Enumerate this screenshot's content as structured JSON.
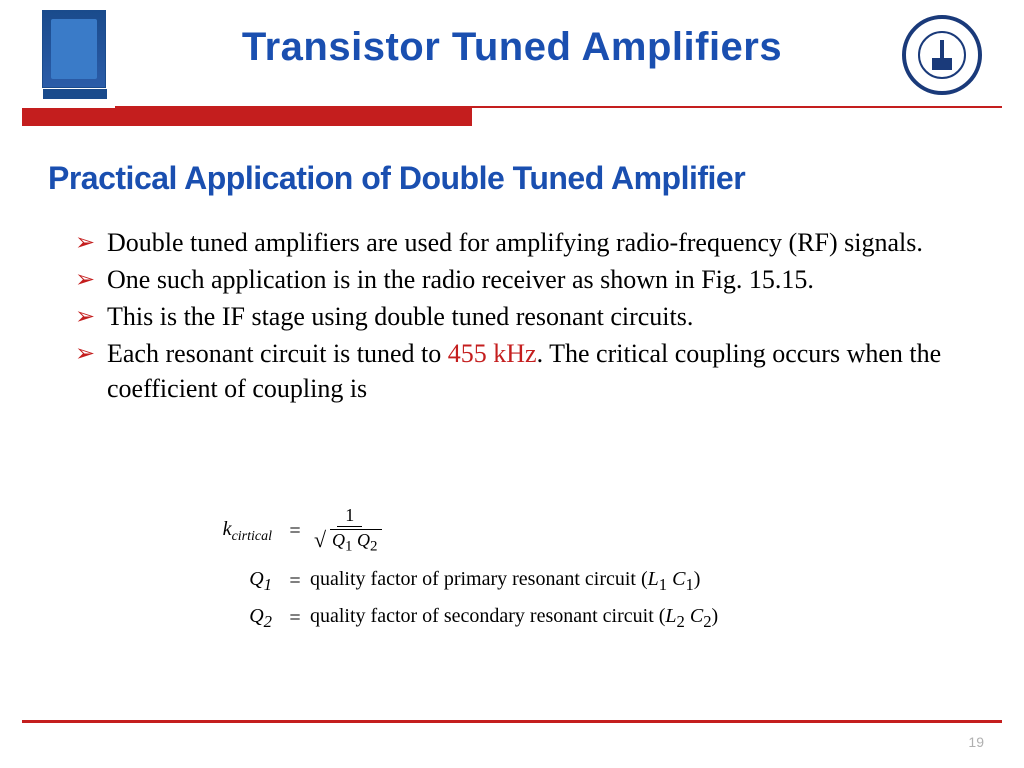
{
  "header": {
    "title": "Transistor Tuned Amplifiers",
    "title_color": "#1a4fb0",
    "title_fontsize": 40,
    "accent_color": "#c41e1e"
  },
  "subtitle": {
    "text": "Practical Application of Double Tuned Amplifier",
    "color": "#1a4fb0",
    "fontsize": 32
  },
  "bullets": [
    {
      "text": "Double tuned amplifiers are used for amplifying radio-frequency (RF) signals."
    },
    {
      "text": " One such application is in the radio receiver as shown in Fig. 15.15."
    },
    {
      "text": "This is the IF stage using double tuned resonant circuits."
    },
    {
      "prefix": " Each resonant circuit is tuned to ",
      "highlight": "455 kHz",
      "suffix": ". The critical coupling occurs when the coefficient of coupling is"
    }
  ],
  "formulas": {
    "k_label": "k",
    "k_sub": "cirtical",
    "k_num": "1",
    "k_den_a": "Q",
    "k_den_a_sub": "1",
    "k_den_b": "Q",
    "k_den_b_sub": "2",
    "q1_label": "Q",
    "q1_sub": "1",
    "q1_desc": "quality factor of primary resonant circuit (",
    "q1_lc_l": "L",
    "q1_lc_l_sub": "1",
    "q1_lc_c": "C",
    "q1_lc_c_sub": "1",
    "q1_close": ")",
    "q2_label": "Q",
    "q2_sub": "2",
    "q2_desc": "quality factor of secondary resonant circuit (",
    "q2_lc_l": "L",
    "q2_lc_l_sub": "2",
    "q2_lc_c": "C",
    "q2_lc_c_sub": "2",
    "q2_close": ")"
  },
  "footer": {
    "page_number": "19",
    "line_color": "#c41e1e"
  },
  "colors": {
    "background": "#ffffff",
    "text": "#000000",
    "bullet_marker": "#c41e1e",
    "highlight": "#c41e1e"
  }
}
